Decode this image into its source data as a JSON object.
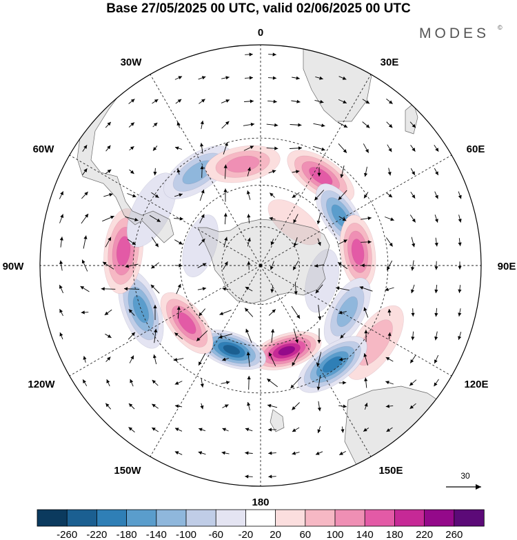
{
  "title": "Base 27/05/2025 00 UTC, valid 02/06/2025 00 UTC",
  "brand": {
    "name": "MODES",
    "mark": "©"
  },
  "longitude_labels": {
    "lon_0": "0",
    "lon_30E": "30E",
    "lon_60E": "60E",
    "lon_90E": "90E",
    "lon_120E": "120E",
    "lon_150E": "150E",
    "lon_180": "180",
    "lon_150W": "150W",
    "lon_120W": "120W",
    "lon_90W": "90W",
    "lon_60W": "60W",
    "lon_30W": "30W"
  },
  "reference_vector": {
    "label": "30"
  },
  "colorbar": {
    "colors": [
      "#0b3a5e",
      "#1b5f91",
      "#2f7fb6",
      "#5a9dcc",
      "#8fb7dc",
      "#c0cde7",
      "#e4e4f2",
      "#ffffff",
      "#fbdede",
      "#f6b8c4",
      "#ef8fb4",
      "#e35aa6",
      "#c62996",
      "#94098a",
      "#5c0a78"
    ],
    "tick_labels": [
      "-260",
      "-220",
      "-180",
      "-140",
      "-100",
      "-60",
      "-20",
      "20",
      "60",
      "100",
      "140",
      "180",
      "220",
      "260"
    ]
  },
  "anomaly_centers": [
    {
      "lon": 34,
      "lat": -38,
      "value": 160
    },
    {
      "lon": 58,
      "lat": -44,
      "value": -180
    },
    {
      "lon": 38,
      "lat": -62,
      "value": 40
    },
    {
      "lon": 82,
      "lat": -42,
      "value": 170
    },
    {
      "lon": 104,
      "lat": -58,
      "value": -60
    },
    {
      "lon": 118,
      "lat": -42,
      "value": -140
    },
    {
      "lon": 124,
      "lat": -26,
      "value": 90
    },
    {
      "lon": 144,
      "lat": -32,
      "value": -200
    },
    {
      "lon": 163,
      "lat": -46,
      "value": 250
    },
    {
      "lon": -161,
      "lat": -46,
      "value": -230
    },
    {
      "lon": -128,
      "lat": -44,
      "value": 160
    },
    {
      "lon": -110,
      "lat": -30,
      "value": -160
    },
    {
      "lon": -84,
      "lat": -26,
      "value": 180
    },
    {
      "lon": -63,
      "lat": -32,
      "value": -60
    },
    {
      "lon": -34,
      "lat": -36,
      "value": -110
    },
    {
      "lon": -10,
      "lat": -40,
      "value": 110
    },
    {
      "lon": -72,
      "lat": -58,
      "value": -60
    },
    {
      "lon": 118,
      "lat": -70,
      "value": -20
    }
  ]
}
